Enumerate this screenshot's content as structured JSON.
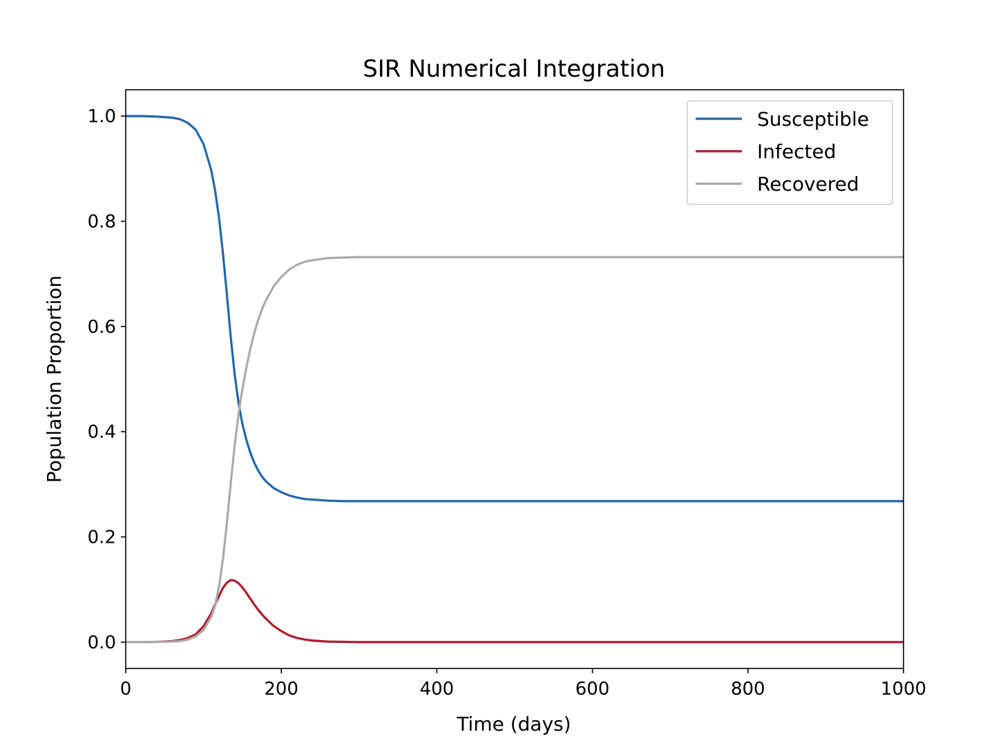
{
  "chart_data": {
    "type": "line",
    "title": "SIR Numerical Integration",
    "xlabel": "Time (days)",
    "ylabel": "Population Proportion",
    "xlim": [
      0,
      1000
    ],
    "ylim": [
      -0.05,
      1.05
    ],
    "xticks": [
      0,
      200,
      400,
      600,
      800,
      1000
    ],
    "xtick_labels": [
      "0",
      "200",
      "400",
      "600",
      "800",
      "1000"
    ],
    "yticks": [
      0.0,
      0.2,
      0.4,
      0.6,
      0.8,
      1.0
    ],
    "ytick_labels": [
      "0.0",
      "0.2",
      "0.4",
      "0.6",
      "0.8",
      "1.0"
    ],
    "grid": false,
    "legend_position": "upper right",
    "x": [
      0,
      20,
      40,
      60,
      70,
      80,
      90,
      100,
      110,
      115,
      120,
      125,
      130,
      135,
      140,
      145,
      150,
      155,
      160,
      165,
      170,
      175,
      180,
      190,
      200,
      210,
      220,
      230,
      240,
      260,
      280,
      300,
      350,
      400,
      500,
      600,
      700,
      800,
      900,
      1000
    ],
    "series": [
      {
        "name": "Susceptible",
        "color": "#2166ac",
        "values": [
          1.0,
          1.0,
          0.999,
          0.997,
          0.994,
          0.987,
          0.974,
          0.947,
          0.897,
          0.858,
          0.806,
          0.739,
          0.662,
          0.58,
          0.51,
          0.455,
          0.415,
          0.385,
          0.361,
          0.342,
          0.327,
          0.315,
          0.306,
          0.293,
          0.285,
          0.279,
          0.275,
          0.272,
          0.271,
          0.269,
          0.268,
          0.268,
          0.268,
          0.268,
          0.268,
          0.268,
          0.268,
          0.268,
          0.268,
          0.268
        ]
      },
      {
        "name": "Infected",
        "color": "#b2182b",
        "values": [
          0.0,
          0.0,
          0.0005,
          0.002,
          0.004,
          0.008,
          0.015,
          0.03,
          0.055,
          0.072,
          0.088,
          0.103,
          0.113,
          0.118,
          0.117,
          0.112,
          0.104,
          0.094,
          0.083,
          0.072,
          0.062,
          0.053,
          0.045,
          0.031,
          0.021,
          0.013,
          0.008,
          0.005,
          0.003,
          0.001,
          0.0005,
          0.0,
          0.0,
          0.0,
          0.0,
          0.0,
          0.0,
          0.0,
          0.0,
          0.0
        ]
      },
      {
        "name": "Recovered",
        "color": "#aaaaaa",
        "values": [
          0.0,
          0.0,
          0.0005,
          0.001,
          0.002,
          0.005,
          0.011,
          0.023,
          0.048,
          0.07,
          0.106,
          0.158,
          0.225,
          0.302,
          0.373,
          0.433,
          0.481,
          0.521,
          0.556,
          0.586,
          0.611,
          0.632,
          0.649,
          0.676,
          0.694,
          0.708,
          0.717,
          0.723,
          0.726,
          0.73,
          0.731,
          0.732,
          0.732,
          0.732,
          0.732,
          0.732,
          0.732,
          0.732,
          0.732,
          0.732
        ]
      }
    ]
  }
}
